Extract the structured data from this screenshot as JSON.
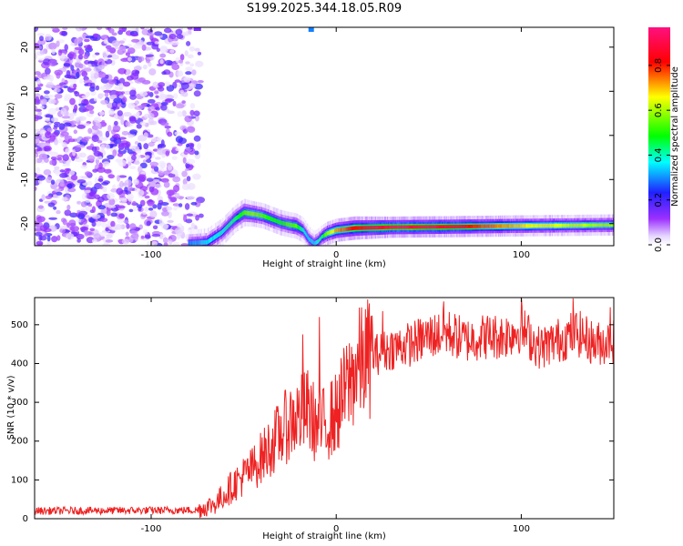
{
  "title": "S199.2025.344.18.05.R09",
  "chart_data": [
    {
      "type": "heatmap",
      "xlabel": "Height of straight line (km)",
      "ylabel": "Frequency (Hz)",
      "xlim": [
        -163,
        150
      ],
      "ylim": [
        -25,
        24.5
      ],
      "x_ticks": [
        -100,
        0,
        100
      ],
      "y_ticks": [
        20,
        10,
        0,
        -10,
        -20
      ],
      "x_tick_labels": [
        "-100",
        "0",
        "100"
      ],
      "y_tick_labels": [
        "20",
        "10",
        "0",
        "-10",
        "-20"
      ],
      "colorbar": {
        "label": "Normalized spectral amplitude",
        "ticks": [
          0.0,
          0.2,
          0.4,
          0.6,
          0.8
        ],
        "tick_labels": [
          "0.0",
          "0.2",
          "0.4",
          "0.6",
          "0.8"
        ],
        "range": [
          0.0,
          0.97
        ]
      },
      "noise_region": {
        "x_from": -163,
        "x_to": -73,
        "level": 0.1
      },
      "ridge": {
        "x": [
          -80,
          -70,
          -62,
          -55,
          -50,
          -45,
          -40,
          -35,
          -30,
          -25,
          -22,
          -18,
          -15,
          -12,
          -10,
          -8,
          -5,
          0,
          10,
          30,
          60,
          100,
          150
        ],
        "y": [
          -24.5,
          -24.2,
          -22.0,
          -19.0,
          -17.5,
          -17.8,
          -18.2,
          -19.0,
          -19.8,
          -20.3,
          -20.5,
          -21.5,
          -23.5,
          -24.5,
          -24.0,
          -23.0,
          -22.2,
          -21.5,
          -21.0,
          -20.8,
          -20.7,
          -20.5,
          -20.3
        ],
        "amplitude": [
          0.3,
          0.35,
          0.4,
          0.45,
          0.55,
          0.6,
          0.55,
          0.5,
          0.5,
          0.55,
          0.55,
          0.4,
          0.35,
          0.35,
          0.4,
          0.45,
          0.6,
          0.75,
          0.85,
          0.95,
          0.9,
          0.7,
          0.6
        ]
      },
      "ridge_halfwidth_hz": [
        1.3,
        1.3,
        1.3,
        1.3,
        1.3,
        1.2,
        1.2,
        1.2,
        1.2,
        1.2,
        1.2,
        1.2,
        1.2,
        1.2,
        1.2,
        1.1,
        1.1,
        1.1,
        1.1,
        1.0,
        1.0,
        1.0,
        1.0
      ]
    },
    {
      "type": "line",
      "xlabel": "Height of straight line (km)",
      "ylabel": "SNR (10 * v/v)",
      "xlim": [
        -163,
        150
      ],
      "ylim": [
        0,
        570
      ],
      "x_ticks": [
        -100,
        0,
        100
      ],
      "y_ticks": [
        0,
        100,
        200,
        300,
        400,
        500
      ],
      "x_tick_labels": [
        "-100",
        "0",
        "100"
      ],
      "y_tick_labels": [
        "0",
        "100",
        "200",
        "300",
        "400",
        "500"
      ],
      "line_color": "#ee2222",
      "trend": {
        "x": [
          -163,
          -75,
          -65,
          -55,
          -45,
          -35,
          -25,
          -15,
          -10,
          -5,
          0,
          5,
          10,
          15,
          20,
          30,
          40,
          50,
          60,
          70,
          80,
          90,
          100,
          110,
          120,
          130,
          140,
          150
        ],
        "y": [
          20,
          22,
          40,
          90,
          130,
          190,
          250,
          280,
          230,
          250,
          270,
          330,
          380,
          410,
          420,
          440,
          450,
          470,
          480,
          460,
          470,
          470,
          490,
          440,
          460,
          480,
          450,
          460
        ]
      },
      "spikes": [
        {
          "x": -18,
          "y": 475
        },
        {
          "x": -9,
          "y": 520
        },
        {
          "x": 25,
          "y": 535
        },
        {
          "x": 58,
          "y": 560
        },
        {
          "x": 100,
          "y": 568
        },
        {
          "x": 128,
          "y": 568
        },
        {
          "x": 148,
          "y": 545
        }
      ]
    }
  ]
}
